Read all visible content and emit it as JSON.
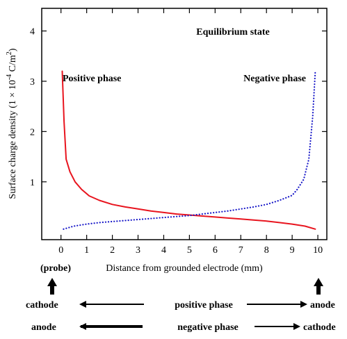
{
  "chart_data": {
    "type": "line",
    "title": "Equilibrium state",
    "xlabel": "Distance from grounded electrode (mm)",
    "ylabel": "Surface charge density (1 × 10",
    "ylabel_exp": "-4",
    "ylabel_unit": " C/m",
    "ylabel_unit_exp": "2",
    "ylabel_close": ")",
    "xlim": [
      -0.75,
      10.35
    ],
    "ylim": [
      -0.15,
      4.45
    ],
    "xticks": [
      0,
      1,
      2,
      3,
      4,
      5,
      6,
      7,
      8,
      9,
      10
    ],
    "yticks": [
      1,
      2,
      3,
      4
    ],
    "series": [
      {
        "name": "Positive phase",
        "color": "#e8141e",
        "style": "solid",
        "x": [
          0.05,
          0.12,
          0.2,
          0.35,
          0.55,
          0.8,
          1.1,
          1.5,
          2.0,
          2.5,
          3.0,
          3.5,
          4.0,
          4.5,
          5.0,
          5.5,
          6.0,
          6.5,
          7.0,
          7.5,
          8.0,
          8.5,
          9.0,
          9.5,
          9.9
        ],
        "y": [
          3.2,
          2.2,
          1.45,
          1.2,
          1.0,
          0.85,
          0.72,
          0.63,
          0.55,
          0.5,
          0.46,
          0.42,
          0.39,
          0.36,
          0.34,
          0.32,
          0.3,
          0.28,
          0.26,
          0.24,
          0.22,
          0.19,
          0.16,
          0.12,
          0.06
        ]
      },
      {
        "name": "Negative phase",
        "color": "#1717c8",
        "style": "dotted",
        "x": [
          0.1,
          0.5,
          1.0,
          1.5,
          2.0,
          2.5,
          3.0,
          3.5,
          4.0,
          4.5,
          5.0,
          5.5,
          6.0,
          6.5,
          7.0,
          7.5,
          8.0,
          8.5,
          9.0,
          9.2,
          9.45,
          9.65,
          9.8,
          9.9
        ],
        "y": [
          0.06,
          0.12,
          0.16,
          0.19,
          0.21,
          0.23,
          0.25,
          0.27,
          0.29,
          0.31,
          0.33,
          0.36,
          0.39,
          0.42,
          0.46,
          0.5,
          0.55,
          0.63,
          0.73,
          0.85,
          1.05,
          1.45,
          2.3,
          3.2
        ]
      }
    ]
  },
  "annotations": {
    "probe": "(probe)",
    "row1": {
      "left": "cathode",
      "middle": "positive phase",
      "right": "anode"
    },
    "row2": {
      "left": "anode",
      "middle": "negative phase",
      "right": "cathode"
    }
  }
}
